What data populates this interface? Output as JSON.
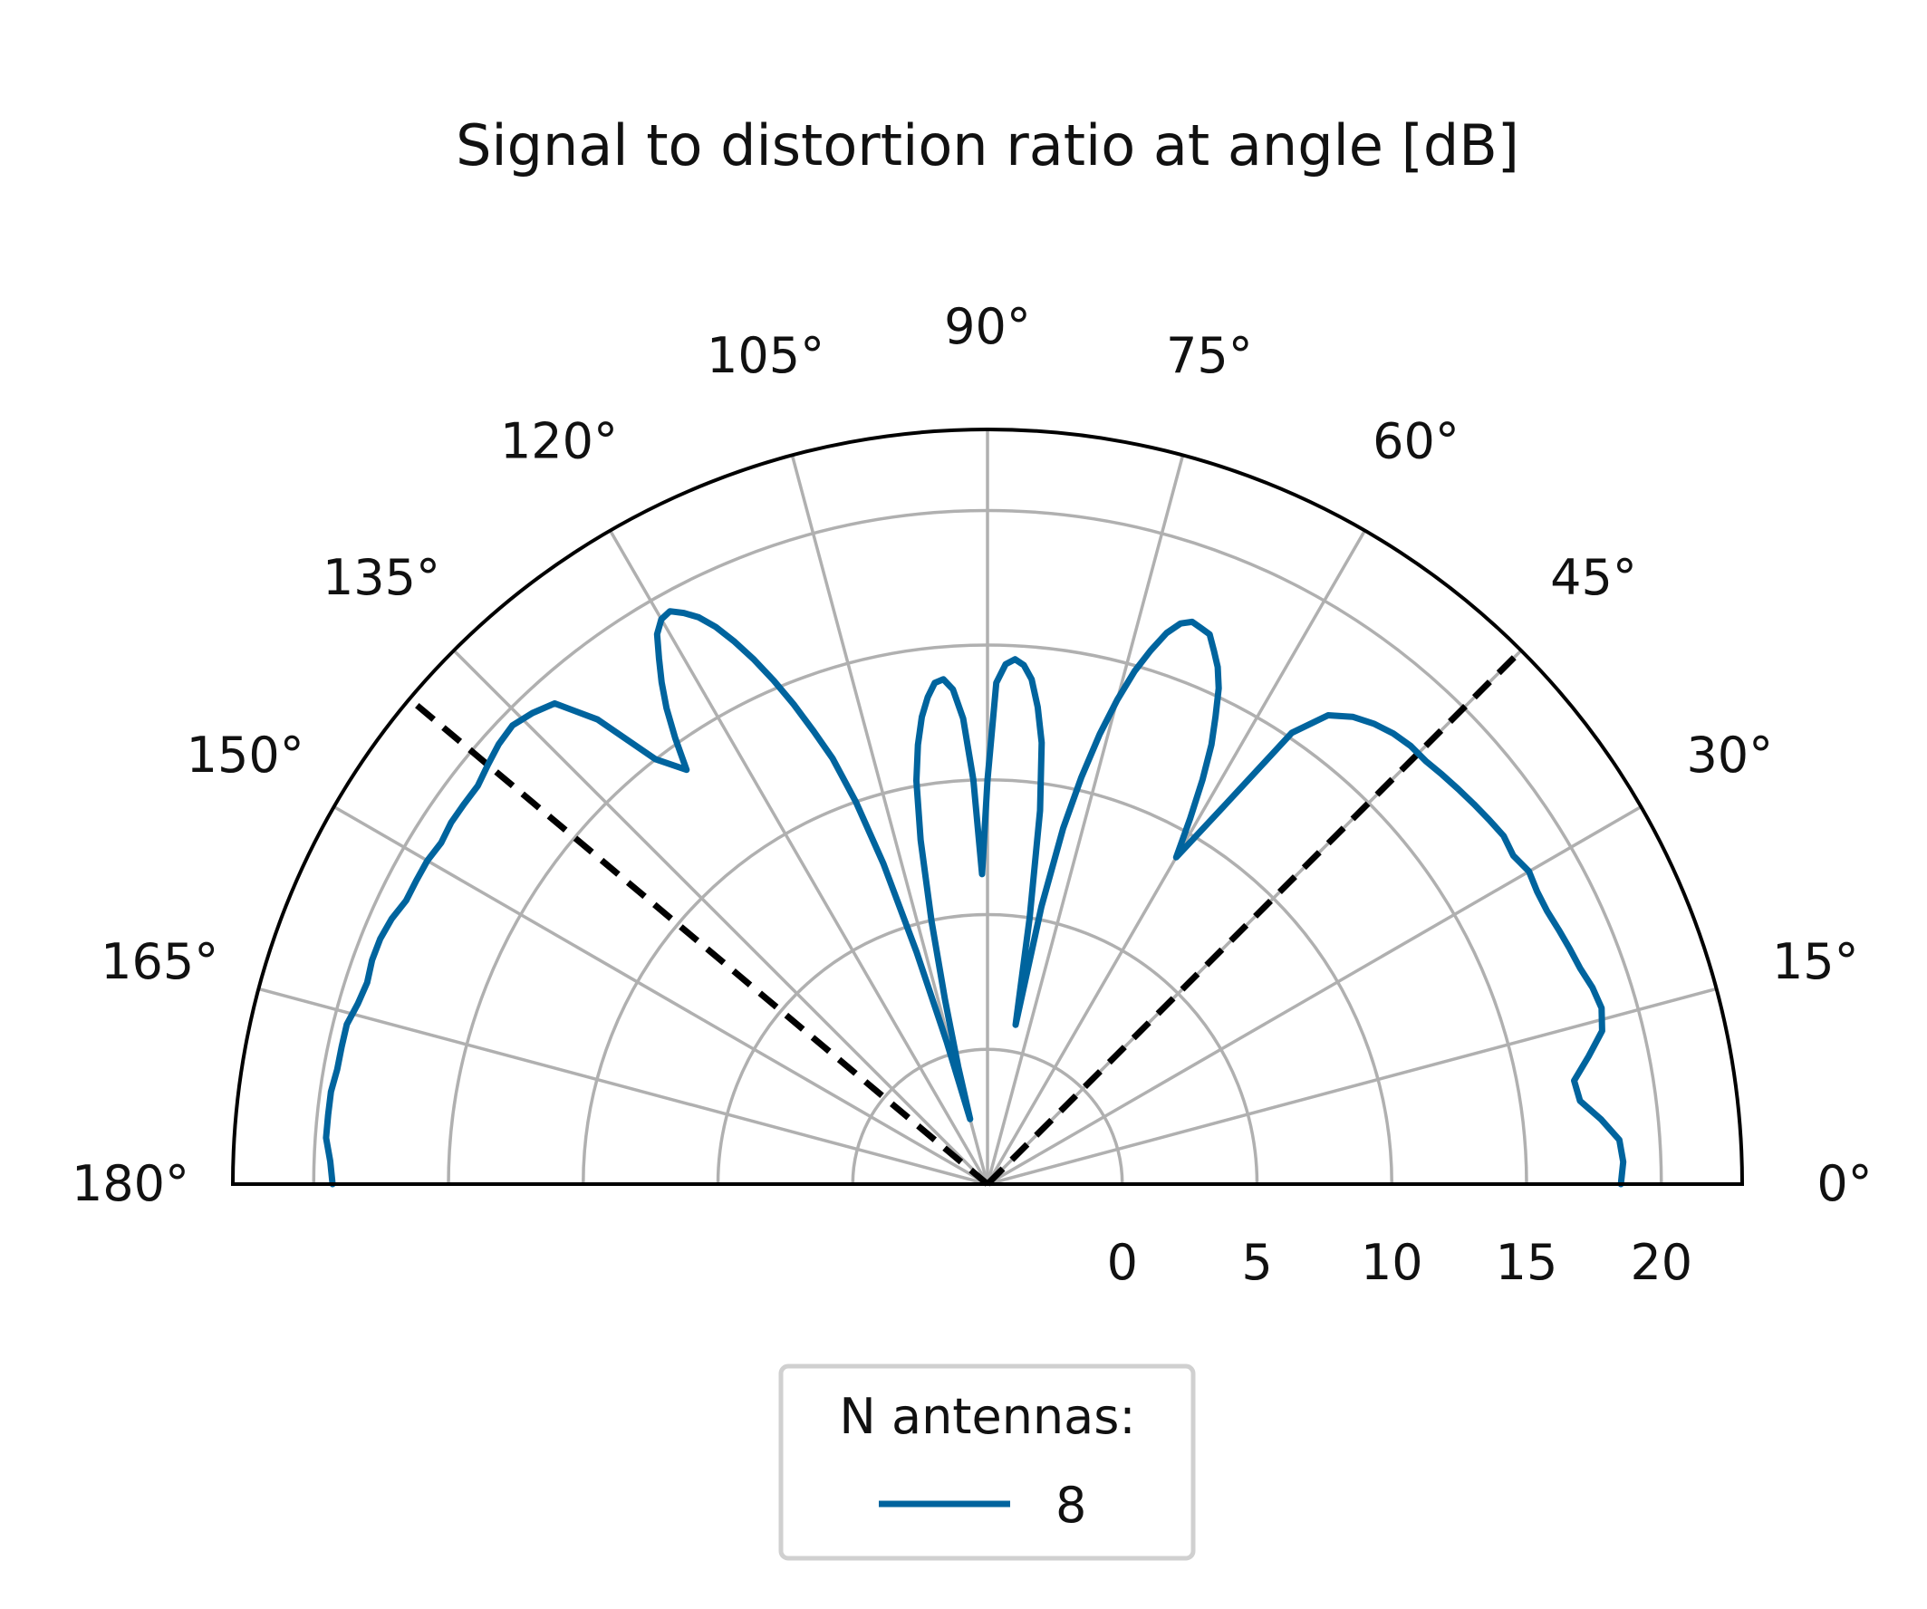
{
  "chart_data": {
    "type": "line",
    "coordinate_system": "polar-half",
    "title": "Signal to distortion ratio at angle [dB]",
    "theta_unit": "degrees",
    "theta_range": [
      0,
      180
    ],
    "theta_ticks": [
      "0°",
      "15°",
      "30°",
      "45°",
      "60°",
      "75°",
      "90°",
      "105°",
      "120°",
      "135°",
      "150°",
      "165°",
      "180°"
    ],
    "r_range": [
      -5,
      23
    ],
    "r_ticks": [
      0,
      5,
      10,
      15,
      20
    ],
    "grid": true,
    "reference_lines": [
      {
        "theta": 45,
        "style": "dashed",
        "color": "#000000"
      },
      {
        "theta": 140,
        "style": "dashed",
        "color": "#000000"
      }
    ],
    "legend": {
      "title": "N antennas:",
      "position": "bottom-center",
      "entries": [
        "8"
      ]
    },
    "series": [
      {
        "name": "8",
        "color": "#00649e",
        "theta": [
          0,
          2,
          4,
          6,
          8,
          10,
          12,
          14,
          16,
          18,
          20,
          22,
          24,
          26,
          28,
          30,
          32,
          34,
          36,
          38,
          40,
          42,
          44,
          46,
          48,
          50,
          52,
          54,
          56,
          58,
          60,
          61,
          62,
          63,
          64,
          65,
          66,
          67,
          68,
          69,
          70,
          71,
          72,
          73,
          74,
          75,
          76,
          77,
          78,
          79,
          80,
          81,
          82,
          83,
          84,
          85,
          86,
          87,
          88,
          89,
          90,
          91,
          92,
          93,
          94,
          95,
          96,
          97,
          98,
          99,
          100,
          101,
          102,
          103,
          104,
          105,
          106,
          107,
          108,
          109,
          110,
          111,
          112,
          113,
          114,
          115,
          116,
          117,
          118,
          119,
          120,
          121,
          122,
          123,
          124,
          125,
          126,
          128,
          130,
          132,
          134,
          136,
          138,
          140,
          142,
          144,
          146,
          148,
          150,
          152,
          154,
          156,
          158,
          160,
          162,
          164,
          166,
          168,
          170,
          172,
          174,
          176,
          178,
          180
        ],
        "r": [
          18.5,
          18.6,
          18.5,
          17.9,
          17.2,
          17.1,
          17.8,
          18.5,
          18.7,
          18.6,
          18.4,
          18.3,
          18.2,
          18.1,
          18.1,
          18.2,
          18.0,
          18.1,
          18.0,
          17.9,
          17.8,
          17.7,
          17.6,
          17.6,
          17.5,
          17.3,
          17.0,
          16.5,
          15.2,
          11.5,
          9.0,
          10.5,
          12.0,
          13.3,
          14.3,
          15.3,
          16.0,
          16.5,
          17.0,
          17.1,
          17.2,
          17.0,
          16.5,
          15.7,
          14.8,
          13.6,
          12.2,
          10.5,
          8.5,
          5.5,
          1.0,
          5.0,
          9.0,
          11.5,
          12.8,
          13.8,
          14.3,
          14.5,
          14.3,
          13.6,
          10.0,
          6.5,
          10.0,
          12.3,
          13.4,
          13.8,
          13.7,
          13.2,
          12.5,
          11.5,
          10.2,
          8.0,
          5.0,
          2.0,
          -0.5,
          -2.5,
          0.5,
          4.0,
          7.5,
          10.0,
          11.8,
          13.0,
          14.2,
          15.3,
          16.3,
          17.2,
          18.0,
          18.6,
          19.0,
          19.3,
          19.2,
          18.8,
          18.0,
          17.2,
          16.3,
          15.2,
          14.0,
          15.0,
          17.5,
          19.0,
          19.3,
          19.5,
          19.4,
          19.2,
          19.0,
          19.0,
          19.0,
          18.9,
          19.0,
          19.0,
          19.0,
          19.2,
          19.3,
          19.3,
          19.2,
          19.3,
          19.5,
          19.5,
          19.5,
          19.6,
          19.6,
          19.6,
          19.4,
          19.3
        ]
      }
    ]
  }
}
